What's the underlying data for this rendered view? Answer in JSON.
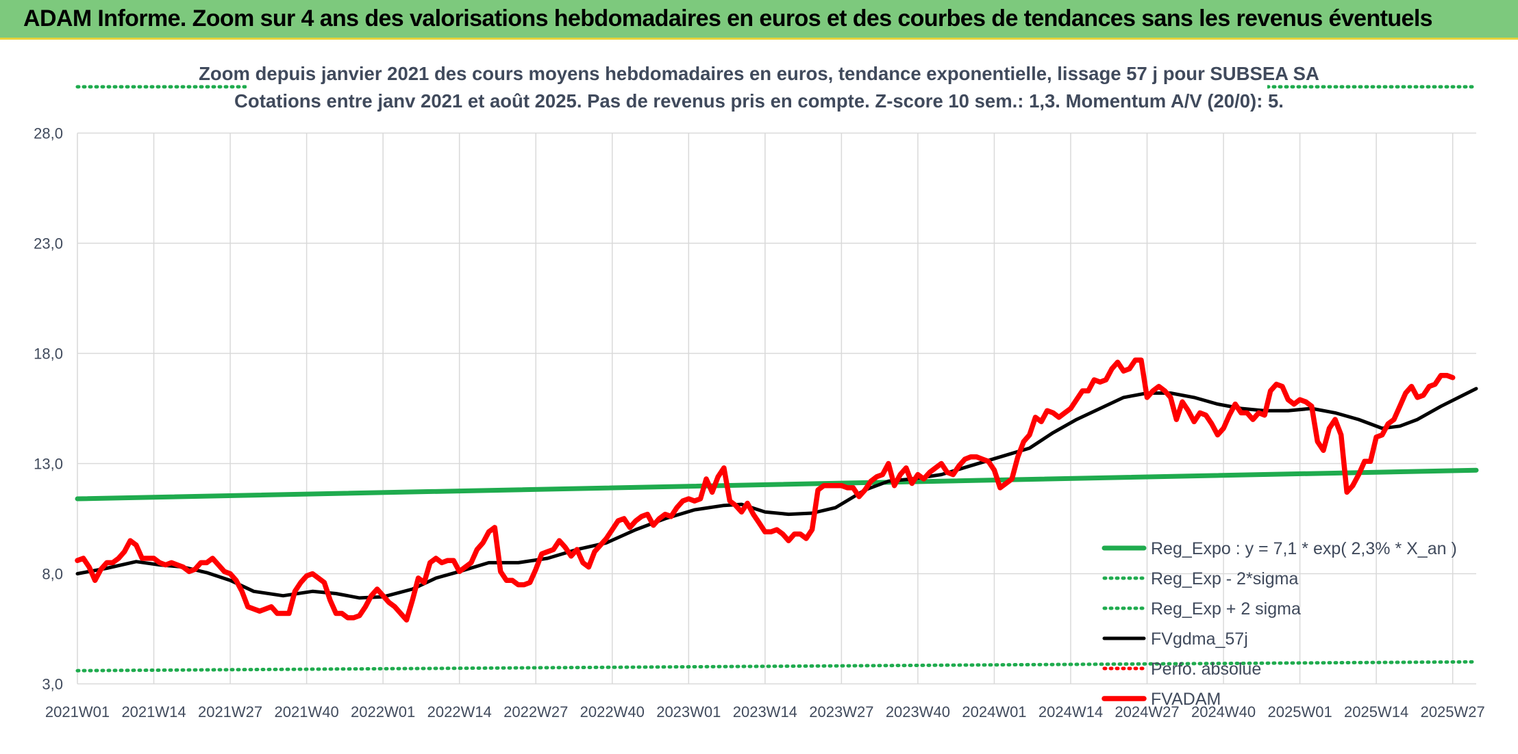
{
  "banner": {
    "title": "ADAM Informe. Zoom sur 4 ans des valorisations hebdomadaires en euros et des courbes de tendances sans les revenus éventuels"
  },
  "colors": {
    "banner_bg": "#7dc97d",
    "banner_border": "#e7d23c",
    "reg_expo": "#1fab4e",
    "price": "#ff0000",
    "moving_avg": "#000000",
    "grid": "#d9d9d9",
    "text": "#404a5c"
  },
  "chart_data": {
    "type": "line",
    "title": "Zoom depuis janvier 2021 des cours moyens hebdomadaires en euros, tendance exponentielle, lissage 57 j pour SUBSEA SA",
    "subtitle": "Cotations entre janv 2021 et août 2025. Pas de revenus pris en compte. Z-score 10 sem.: 1,3. Momentum A/V (20/0): 5.",
    "xlabel": "",
    "ylabel": "",
    "ylim": [
      3.0,
      28.0
    ],
    "yticks": [
      "3,0",
      "8,0",
      "13,0",
      "18,0",
      "23,0",
      "28,0"
    ],
    "ytick_values": [
      3,
      8,
      13,
      18,
      23,
      28
    ],
    "x_categories": [
      "2021W01",
      "2021W14",
      "2021W27",
      "2021W40",
      "2022W01",
      "2022W14",
      "2022W27",
      "2022W40",
      "2023W01",
      "2023W14",
      "2023W27",
      "2023W40",
      "2024W01",
      "2024W14",
      "2024W27",
      "2024W40",
      "2025W01",
      "2025W14",
      "2025W27"
    ],
    "x_tick_weeks": [
      0,
      13,
      26,
      39,
      52,
      65,
      78,
      91,
      104,
      117,
      130,
      143,
      156,
      169,
      182,
      195,
      208,
      221,
      234
    ],
    "x_range_weeks": [
      0,
      238
    ],
    "grid": true,
    "legend_position": "bottom-right",
    "series": [
      {
        "name": "Reg_Expo : y = 7,1 * exp( 2,3% *  X_an )",
        "style": "solid",
        "color": "#1fab4e",
        "points": [
          [
            0,
            11.4
          ],
          [
            238,
            12.7
          ]
        ]
      },
      {
        "name": "Reg_Exp - 2*sigma",
        "style": "dotted",
        "color": "#1fab4e",
        "points": [
          [
            0,
            3.6
          ],
          [
            238,
            4.0
          ]
        ]
      },
      {
        "name": "Reg_Exp + 2 sigma",
        "style": "dotted",
        "color": "#1fab4e",
        "points": [
          [
            0,
            30.1
          ],
          [
            238,
            30.1
          ]
        ]
      },
      {
        "name": "FVgdma_57j",
        "style": "solid",
        "color": "#000000",
        "points": [
          [
            0,
            8.0
          ],
          [
            5,
            8.25
          ],
          [
            10,
            8.55
          ],
          [
            14,
            8.4
          ],
          [
            18,
            8.3
          ],
          [
            22,
            8.05
          ],
          [
            26,
            7.7
          ],
          [
            30,
            7.2
          ],
          [
            35,
            7.0
          ],
          [
            40,
            7.2
          ],
          [
            44,
            7.1
          ],
          [
            48,
            6.9
          ],
          [
            52,
            6.95
          ],
          [
            57,
            7.3
          ],
          [
            61,
            7.8
          ],
          [
            65,
            8.1
          ],
          [
            70,
            8.5
          ],
          [
            75,
            8.5
          ],
          [
            80,
            8.7
          ],
          [
            85,
            9.1
          ],
          [
            90,
            9.4
          ],
          [
            95,
            10.0
          ],
          [
            100,
            10.5
          ],
          [
            105,
            10.9
          ],
          [
            110,
            11.1
          ],
          [
            113,
            11.15
          ],
          [
            117,
            10.8
          ],
          [
            121,
            10.7
          ],
          [
            125,
            10.75
          ],
          [
            129,
            11.0
          ],
          [
            134,
            11.8
          ],
          [
            138,
            12.2
          ],
          [
            142,
            12.3
          ],
          [
            147,
            12.5
          ],
          [
            152,
            12.9
          ],
          [
            157,
            13.3
          ],
          [
            162,
            13.7
          ],
          [
            166,
            14.4
          ],
          [
            170,
            15.0
          ],
          [
            174,
            15.5
          ],
          [
            178,
            16.0
          ],
          [
            182,
            16.2
          ],
          [
            186,
            16.2
          ],
          [
            190,
            16.0
          ],
          [
            194,
            15.7
          ],
          [
            198,
            15.5
          ],
          [
            202,
            15.4
          ],
          [
            206,
            15.4
          ],
          [
            210,
            15.5
          ],
          [
            214,
            15.3
          ],
          [
            218,
            15.0
          ],
          [
            222,
            14.6
          ],
          [
            225,
            14.7
          ],
          [
            228,
            15.0
          ],
          [
            232,
            15.6
          ],
          [
            235,
            16.0
          ],
          [
            238,
            16.4
          ]
        ]
      },
      {
        "name": "Perfo. absolue",
        "style": "dotted",
        "color": "#ff0000",
        "points": []
      },
      {
        "name": "FVADAM",
        "style": "solid",
        "color": "#ff0000",
        "points": [
          [
            0,
            8.6
          ],
          [
            1,
            8.7
          ],
          [
            2,
            8.3
          ],
          [
            3,
            7.7
          ],
          [
            4,
            8.2
          ],
          [
            5,
            8.5
          ],
          [
            6,
            8.5
          ],
          [
            7,
            8.7
          ],
          [
            8,
            9.0
          ],
          [
            9,
            9.5
          ],
          [
            10,
            9.3
          ],
          [
            11,
            8.7
          ],
          [
            12,
            8.7
          ],
          [
            13,
            8.7
          ],
          [
            14,
            8.5
          ],
          [
            15,
            8.4
          ],
          [
            16,
            8.5
          ],
          [
            17,
            8.4
          ],
          [
            18,
            8.3
          ],
          [
            19,
            8.1
          ],
          [
            20,
            8.2
          ],
          [
            21,
            8.5
          ],
          [
            22,
            8.5
          ],
          [
            23,
            8.7
          ],
          [
            24,
            8.4
          ],
          [
            25,
            8.1
          ],
          [
            26,
            8.0
          ],
          [
            27,
            7.7
          ],
          [
            28,
            7.2
          ],
          [
            29,
            6.5
          ],
          [
            30,
            6.4
          ],
          [
            31,
            6.3
          ],
          [
            32,
            6.4
          ],
          [
            33,
            6.5
          ],
          [
            34,
            6.2
          ],
          [
            35,
            6.2
          ],
          [
            36,
            6.2
          ],
          [
            37,
            7.2
          ],
          [
            38,
            7.6
          ],
          [
            39,
            7.9
          ],
          [
            40,
            8.0
          ],
          [
            41,
            7.8
          ],
          [
            42,
            7.6
          ],
          [
            43,
            6.8
          ],
          [
            44,
            6.2
          ],
          [
            45,
            6.2
          ],
          [
            46,
            6.0
          ],
          [
            47,
            6.0
          ],
          [
            48,
            6.1
          ],
          [
            49,
            6.5
          ],
          [
            50,
            7.0
          ],
          [
            51,
            7.3
          ],
          [
            52,
            7.0
          ],
          [
            53,
            6.7
          ],
          [
            54,
            6.5
          ],
          [
            55,
            6.2
          ],
          [
            56,
            5.9
          ],
          [
            57,
            6.8
          ],
          [
            58,
            7.8
          ],
          [
            59,
            7.6
          ],
          [
            60,
            8.5
          ],
          [
            61,
            8.7
          ],
          [
            62,
            8.5
          ],
          [
            63,
            8.6
          ],
          [
            64,
            8.6
          ],
          [
            65,
            8.1
          ],
          [
            66,
            8.3
          ],
          [
            67,
            8.5
          ],
          [
            68,
            9.1
          ],
          [
            69,
            9.4
          ],
          [
            70,
            9.9
          ],
          [
            71,
            10.1
          ],
          [
            72,
            8.1
          ],
          [
            73,
            7.7
          ],
          [
            74,
            7.7
          ],
          [
            75,
            7.5
          ],
          [
            76,
            7.5
          ],
          [
            77,
            7.6
          ],
          [
            78,
            8.2
          ],
          [
            79,
            8.9
          ],
          [
            80,
            9.0
          ],
          [
            81,
            9.1
          ],
          [
            82,
            9.5
          ],
          [
            83,
            9.2
          ],
          [
            84,
            8.8
          ],
          [
            85,
            9.1
          ],
          [
            86,
            8.5
          ],
          [
            87,
            8.3
          ],
          [
            88,
            9.0
          ],
          [
            89,
            9.3
          ],
          [
            90,
            9.6
          ],
          [
            91,
            10.0
          ],
          [
            92,
            10.4
          ],
          [
            93,
            10.5
          ],
          [
            94,
            10.1
          ],
          [
            95,
            10.4
          ],
          [
            96,
            10.6
          ],
          [
            97,
            10.7
          ],
          [
            98,
            10.2
          ],
          [
            99,
            10.5
          ],
          [
            100,
            10.7
          ],
          [
            101,
            10.6
          ],
          [
            102,
            11.0
          ],
          [
            103,
            11.3
          ],
          [
            104,
            11.4
          ],
          [
            105,
            11.3
          ],
          [
            106,
            11.4
          ],
          [
            107,
            12.3
          ],
          [
            108,
            11.7
          ],
          [
            109,
            12.4
          ],
          [
            110,
            12.8
          ],
          [
            111,
            11.3
          ],
          [
            112,
            11.1
          ],
          [
            113,
            10.8
          ],
          [
            114,
            11.2
          ],
          [
            115,
            10.7
          ],
          [
            116,
            10.3
          ],
          [
            117,
            9.9
          ],
          [
            118,
            9.9
          ],
          [
            119,
            10.0
          ],
          [
            120,
            9.8
          ],
          [
            121,
            9.5
          ],
          [
            122,
            9.8
          ],
          [
            123,
            9.8
          ],
          [
            124,
            9.6
          ],
          [
            125,
            10.0
          ],
          [
            126,
            11.8
          ],
          [
            127,
            12.0
          ],
          [
            128,
            12.0
          ],
          [
            129,
            12.0
          ],
          [
            130,
            12.0
          ],
          [
            131,
            11.9
          ],
          [
            132,
            11.9
          ],
          [
            133,
            11.5
          ],
          [
            134,
            11.8
          ],
          [
            135,
            12.2
          ],
          [
            136,
            12.4
          ],
          [
            137,
            12.5
          ],
          [
            138,
            13.0
          ],
          [
            139,
            12.0
          ],
          [
            140,
            12.5
          ],
          [
            141,
            12.8
          ],
          [
            142,
            12.1
          ],
          [
            143,
            12.5
          ],
          [
            144,
            12.3
          ],
          [
            145,
            12.6
          ],
          [
            146,
            12.8
          ],
          [
            147,
            13.0
          ],
          [
            148,
            12.6
          ],
          [
            149,
            12.5
          ],
          [
            150,
            12.9
          ],
          [
            151,
            13.2
          ],
          [
            152,
            13.3
          ],
          [
            153,
            13.3
          ],
          [
            154,
            13.2
          ],
          [
            155,
            13.1
          ],
          [
            156,
            12.7
          ],
          [
            157,
            11.9
          ],
          [
            158,
            12.1
          ],
          [
            159,
            12.3
          ],
          [
            160,
            13.3
          ],
          [
            161,
            14.0
          ],
          [
            162,
            14.3
          ],
          [
            163,
            15.1
          ],
          [
            164,
            14.9
          ],
          [
            165,
            15.4
          ],
          [
            166,
            15.3
          ],
          [
            167,
            15.1
          ],
          [
            168,
            15.3
          ],
          [
            169,
            15.5
          ],
          [
            170,
            15.9
          ],
          [
            171,
            16.3
          ],
          [
            172,
            16.3
          ],
          [
            173,
            16.8
          ],
          [
            174,
            16.7
          ],
          [
            175,
            16.8
          ],
          [
            176,
            17.3
          ],
          [
            177,
            17.6
          ],
          [
            178,
            17.2
          ],
          [
            179,
            17.3
          ],
          [
            180,
            17.7
          ],
          [
            181,
            17.7
          ],
          [
            182,
            16.0
          ],
          [
            183,
            16.3
          ],
          [
            184,
            16.5
          ],
          [
            185,
            16.3
          ],
          [
            186,
            16.0
          ],
          [
            187,
            15.0
          ],
          [
            188,
            15.8
          ],
          [
            189,
            15.4
          ],
          [
            190,
            14.9
          ],
          [
            191,
            15.3
          ],
          [
            192,
            15.2
          ],
          [
            193,
            14.8
          ],
          [
            194,
            14.3
          ],
          [
            195,
            14.6
          ],
          [
            196,
            15.2
          ],
          [
            197,
            15.7
          ],
          [
            198,
            15.3
          ],
          [
            199,
            15.3
          ],
          [
            200,
            15.0
          ],
          [
            201,
            15.3
          ],
          [
            202,
            15.2
          ],
          [
            203,
            16.3
          ],
          [
            204,
            16.6
          ],
          [
            205,
            16.5
          ],
          [
            206,
            15.9
          ],
          [
            207,
            15.7
          ],
          [
            208,
            15.9
          ],
          [
            209,
            15.8
          ],
          [
            210,
            15.6
          ],
          [
            211,
            14.0
          ],
          [
            212,
            13.6
          ],
          [
            213,
            14.6
          ],
          [
            214,
            15.0
          ],
          [
            215,
            14.3
          ],
          [
            216,
            11.7
          ],
          [
            217,
            12.0
          ],
          [
            218,
            12.5
          ],
          [
            219,
            13.1
          ],
          [
            220,
            13.1
          ],
          [
            221,
            14.2
          ],
          [
            222,
            14.3
          ],
          [
            223,
            14.8
          ],
          [
            224,
            15.0
          ],
          [
            225,
            15.6
          ],
          [
            226,
            16.2
          ],
          [
            227,
            16.5
          ],
          [
            228,
            16.0
          ],
          [
            229,
            16.1
          ],
          [
            230,
            16.5
          ],
          [
            231,
            16.6
          ],
          [
            232,
            17.0
          ],
          [
            233,
            17.0
          ],
          [
            234,
            16.9
          ]
        ]
      }
    ]
  }
}
